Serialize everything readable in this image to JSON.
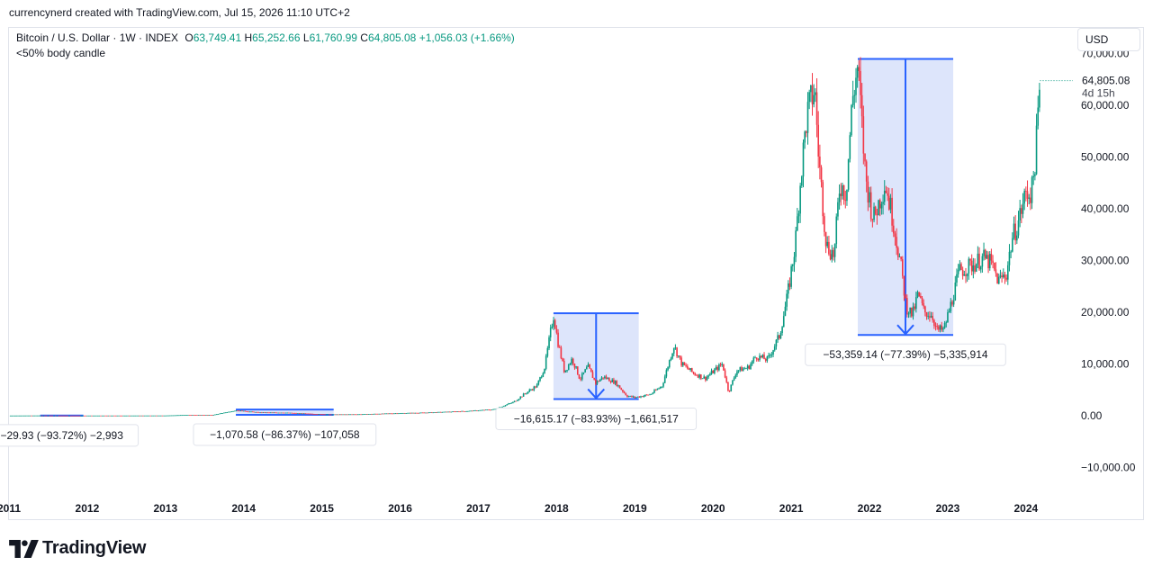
{
  "credit": "currencynerd created with TradingView.com, Jul 15, 2026 11:10 UTC+2",
  "legend": {
    "symbol": "Bitcoin / U.S. Dollar · 1W · INDEX",
    "o_label": "O",
    "open": "63,749.41",
    "h_label": "H",
    "high": "65,252.66",
    "l_label": "L",
    "low": "61,760.99",
    "c_label": "C",
    "close": "64,805.08",
    "change": "+1,056.03 (+1.66%)",
    "indicator": "<50% body candle"
  },
  "currency_button": "USD",
  "price_badge": {
    "value": "64,805.08",
    "countdown": "4d 15h"
  },
  "brand": "TradingView",
  "colors": {
    "up": "#089981",
    "down": "#f23645",
    "measure_line": "#2962ff",
    "measure_fill": "#dbe4fb",
    "axis_text": "#131722"
  },
  "chart_data": {
    "type": "candlestick",
    "x_axis": {
      "tick_labels": [
        "2011",
        "2012",
        "2013",
        "2014",
        "2015",
        "2016",
        "2017",
        "2018",
        "2019",
        "2020",
        "2021",
        "2022",
        "2023",
        "2024"
      ],
      "range": [
        2011.0,
        2024.6
      ]
    },
    "y_axis": {
      "tick_values": [
        -10000,
        0,
        10000,
        20000,
        30000,
        40000,
        50000,
        60000,
        70000
      ],
      "tick_labels": [
        "−10,000.00",
        "0.00",
        "10,000.00",
        "20,000.00",
        "30,000.00",
        "40,000.00",
        "50,000.00",
        "60,000.00",
        "70,000.00"
      ],
      "range": [
        -15000,
        75000
      ],
      "position": "right"
    },
    "price_path": [
      [
        2011.0,
        1
      ],
      [
        2011.45,
        20
      ],
      [
        2011.9,
        3
      ],
      [
        2012.5,
        6
      ],
      [
        2013.0,
        14
      ],
      [
        2013.3,
        140
      ],
      [
        2013.6,
        110
      ],
      [
        2013.9,
        1000
      ],
      [
        2014.2,
        600
      ],
      [
        2014.5,
        580
      ],
      [
        2014.9,
        320
      ],
      [
        2015.1,
        220
      ],
      [
        2015.5,
        260
      ],
      [
        2015.9,
        430
      ],
      [
        2016.4,
        600
      ],
      [
        2016.9,
        900
      ],
      [
        2017.2,
        1200
      ],
      [
        2017.45,
        2600
      ],
      [
        2017.6,
        4300
      ],
      [
        2017.75,
        5800
      ],
      [
        2017.85,
        9500
      ],
      [
        2017.96,
        19500
      ],
      [
        2018.02,
        14000
      ],
      [
        2018.1,
        8500
      ],
      [
        2018.2,
        11000
      ],
      [
        2018.3,
        7000
      ],
      [
        2018.4,
        9500
      ],
      [
        2018.5,
        6300
      ],
      [
        2018.6,
        7500
      ],
      [
        2018.75,
        6400
      ],
      [
        2018.9,
        3800
      ],
      [
        2019.0,
        3500
      ],
      [
        2019.2,
        4100
      ],
      [
        2019.35,
        5800
      ],
      [
        2019.45,
        11000
      ],
      [
        2019.5,
        13500
      ],
      [
        2019.6,
        10000
      ],
      [
        2019.75,
        8200
      ],
      [
        2019.9,
        7200
      ],
      [
        2020.0,
        8500
      ],
      [
        2020.12,
        10000
      ],
      [
        2020.2,
        4500
      ],
      [
        2020.3,
        8700
      ],
      [
        2020.45,
        9300
      ],
      [
        2020.55,
        11500
      ],
      [
        2020.7,
        10800
      ],
      [
        2020.85,
        15500
      ],
      [
        2020.95,
        23000
      ],
      [
        2021.05,
        33000
      ],
      [
        2021.12,
        46000
      ],
      [
        2021.2,
        58000
      ],
      [
        2021.3,
        63500
      ],
      [
        2021.35,
        50000
      ],
      [
        2021.45,
        33000
      ],
      [
        2021.55,
        31000
      ],
      [
        2021.62,
        45000
      ],
      [
        2021.7,
        43000
      ],
      [
        2021.78,
        61000
      ],
      [
        2021.85,
        67500
      ],
      [
        2021.95,
        46000
      ],
      [
        2022.05,
        38000
      ],
      [
        2022.2,
        45000
      ],
      [
        2022.3,
        38000
      ],
      [
        2022.4,
        29000
      ],
      [
        2022.47,
        21000
      ],
      [
        2022.55,
        19500
      ],
      [
        2022.62,
        23500
      ],
      [
        2022.7,
        20000
      ],
      [
        2022.8,
        19500
      ],
      [
        2022.86,
        16500
      ],
      [
        2022.95,
        16600
      ],
      [
        2023.05,
        22000
      ],
      [
        2023.15,
        28000
      ],
      [
        2023.3,
        29000
      ],
      [
        2023.45,
        30500
      ],
      [
        2023.55,
        29500
      ],
      [
        2023.65,
        26000
      ],
      [
        2023.75,
        27500
      ],
      [
        2023.82,
        34000
      ],
      [
        2023.9,
        37500
      ],
      [
        2024.0,
        43000
      ],
      [
        2024.08,
        43500
      ],
      [
        2024.13,
        52000
      ],
      [
        2024.18,
        64805
      ]
    ],
    "measurements": [
      {
        "x1": 2011.4,
        "x2": 2011.95,
        "top": 0,
        "bottom": 0,
        "label": "−29.93 (−93.72%) −2,993"
      },
      {
        "x1": 2013.9,
        "x2": 2015.15,
        "top": 1163,
        "bottom": 152,
        "label": "−1,070.58 (−86.37%) −107,058"
      },
      {
        "x1": 2017.96,
        "x2": 2019.05,
        "top": 19800,
        "bottom": 3200,
        "label": "−16,615.17 (−83.93%) −1,661,517"
      },
      {
        "x1": 2021.85,
        "x2": 2023.07,
        "top": 69000,
        "bottom": 15600,
        "label": "−53,359.14 (−77.39%) −5,335,914"
      }
    ]
  }
}
